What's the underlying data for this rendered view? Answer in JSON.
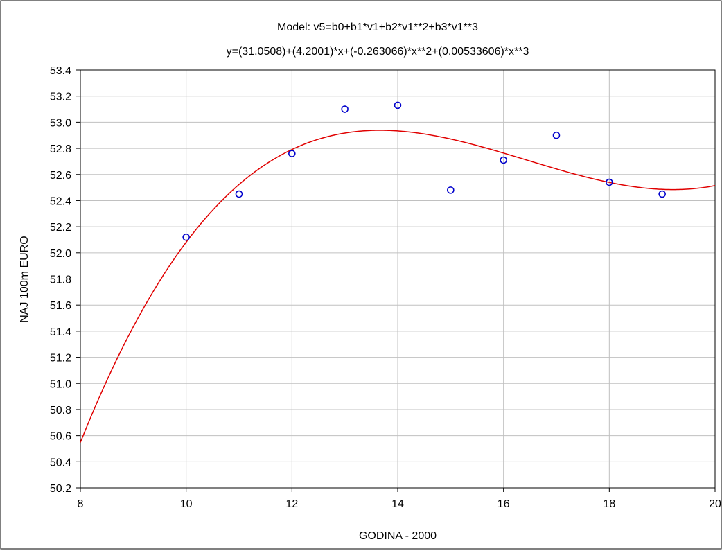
{
  "chart_data": {
    "type": "scatter",
    "title": "Model:  v5=b0+b1*v1+b2*v1**2+b3*v1**3",
    "subtitle": "y=(31.0508)+(4.2001)*x+(-0.263066)*x**2+(0.00533606)*x**3",
    "xlabel": "GODINA - 2000",
    "ylabel": "NAJ 100m EURO",
    "xlim": [
      8,
      20
    ],
    "ylim": [
      50.2,
      53.4
    ],
    "xticks": [
      "8",
      "10",
      "12",
      "14",
      "16",
      "18",
      "20"
    ],
    "yticks": [
      "50.2",
      "50.4",
      "50.6",
      "50.8",
      "51.0",
      "51.2",
      "51.4",
      "51.6",
      "51.8",
      "52.0",
      "52.2",
      "52.4",
      "52.6",
      "52.8",
      "53.0",
      "53.2",
      "53.4"
    ],
    "grid": true,
    "points": {
      "x": [
        10,
        11,
        12,
        13,
        14,
        15,
        16,
        17,
        18,
        19
      ],
      "y": [
        52.12,
        52.45,
        52.76,
        53.1,
        53.13,
        52.48,
        52.71,
        52.9,
        52.54,
        52.45
      ]
    },
    "fit": {
      "type": "polynomial",
      "coefficients": [
        31.0508,
        4.2001,
        -0.263066,
        0.00533606
      ]
    },
    "colors": {
      "points": "#0000cc",
      "fit_line": "#e00000",
      "grid": "#c0c0c0"
    }
  }
}
